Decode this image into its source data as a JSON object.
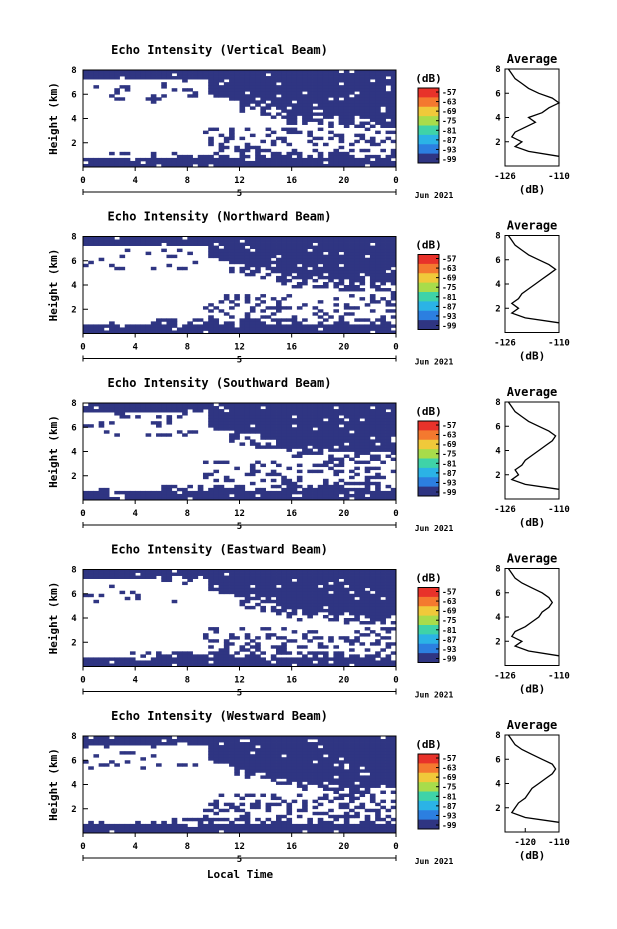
{
  "figure": {
    "xlabel": "Local Time",
    "date_label": "Jun 2021",
    "ylabel": "Height (km)",
    "colorbar_unit": "(dB)",
    "avg_title": "Average",
    "avg_xlabel": "(dB)",
    "colors": {
      "fill": "#2f3582",
      "background": "#ffffff",
      "trace": "#000000"
    }
  },
  "chart_data": [
    {
      "type": "heatmap",
      "title": "Echo Intensity (Vertical Beam)",
      "x_ticks": [
        "0",
        "4",
        "8",
        "12",
        "16",
        "20",
        "0"
      ],
      "x_day_label": "5",
      "xlim": [
        0,
        24
      ],
      "ylim": [
        0,
        8
      ],
      "y_ticks": [
        "2",
        "4",
        "6",
        "8"
      ],
      "colorbar_ticks": [
        "-57",
        "-63",
        "-69",
        "-75",
        "-81",
        "-87",
        "-93",
        "-99"
      ],
      "colorbar_colors": [
        "#e8322a",
        "#f4792f",
        "#f0c93a",
        "#a8dc4b",
        "#3fd3a8",
        "#2bb3e6",
        "#2c7fe0",
        "#2f3582"
      ],
      "profile": {
        "title": "Average",
        "xlim": [
          -126,
          -110
        ],
        "x_ticks": [
          "-126",
          "-110"
        ],
        "ylim": [
          0,
          8
        ],
        "y_ticks": [
          "2",
          "4",
          "6",
          "8"
        ],
        "heights": [
          0.8,
          1.2,
          1.6,
          2.0,
          2.4,
          2.8,
          3.2,
          3.6,
          4.0,
          4.4,
          4.8,
          5.2,
          5.6,
          6.0,
          6.4,
          6.8,
          7.2,
          7.6,
          8.0
        ],
        "values": [
          -110,
          -119,
          -123,
          -121,
          -124,
          -123,
          -120,
          -117,
          -119,
          -115,
          -113,
          -110,
          -112,
          -116,
          -119,
          -121,
          -123,
          -124,
          -125
        ]
      }
    },
    {
      "type": "heatmap",
      "title": "Echo Intensity (Northward Beam)",
      "x_ticks": [
        "0",
        "4",
        "8",
        "12",
        "16",
        "20",
        "0"
      ],
      "x_day_label": "5",
      "xlim": [
        0,
        24
      ],
      "ylim": [
        0,
        8
      ],
      "y_ticks": [
        "2",
        "4",
        "6",
        "8"
      ],
      "colorbar_ticks": [
        "-57",
        "-63",
        "-69",
        "-75",
        "-81",
        "-87",
        "-93",
        "-99"
      ],
      "colorbar_colors": [
        "#e8322a",
        "#f4792f",
        "#f0c93a",
        "#a8dc4b",
        "#3fd3a8",
        "#2bb3e6",
        "#2c7fe0",
        "#2f3582"
      ],
      "profile": {
        "title": "Average",
        "xlim": [
          -126,
          -110
        ],
        "x_ticks": [
          "-126",
          "-110"
        ],
        "ylim": [
          0,
          8
        ],
        "y_ticks": [
          "2",
          "4",
          "6",
          "8"
        ],
        "heights": [
          0.8,
          1.2,
          1.6,
          2.0,
          2.4,
          2.8,
          3.2,
          3.6,
          4.0,
          4.4,
          4.8,
          5.2,
          5.6,
          6.0,
          6.4,
          6.8,
          7.2,
          7.6,
          8.0
        ],
        "values": [
          -110,
          -120,
          -124,
          -122,
          -124,
          -122,
          -121,
          -119,
          -117,
          -115,
          -113,
          -111,
          -113,
          -116,
          -119,
          -121,
          -123,
          -124,
          -125
        ]
      }
    },
    {
      "type": "heatmap",
      "title": "Echo Intensity (Southward Beam)",
      "x_ticks": [
        "0",
        "4",
        "8",
        "12",
        "16",
        "20",
        "0"
      ],
      "x_day_label": "5",
      "xlim": [
        0,
        24
      ],
      "ylim": [
        0,
        8
      ],
      "y_ticks": [
        "2",
        "4",
        "6",
        "8"
      ],
      "colorbar_ticks": [
        "-57",
        "-63",
        "-69",
        "-75",
        "-81",
        "-87",
        "-93",
        "-99"
      ],
      "colorbar_colors": [
        "#e8322a",
        "#f4792f",
        "#f0c93a",
        "#a8dc4b",
        "#3fd3a8",
        "#2bb3e6",
        "#2c7fe0",
        "#2f3582"
      ],
      "profile": {
        "title": "Average",
        "xlim": [
          -126,
          -110
        ],
        "x_ticks": [
          "-126",
          "-110"
        ],
        "ylim": [
          0,
          8
        ],
        "y_ticks": [
          "2",
          "4",
          "6",
          "8"
        ],
        "heights": [
          0.8,
          1.2,
          1.6,
          2.0,
          2.4,
          2.8,
          3.2,
          3.6,
          4.0,
          4.4,
          4.8,
          5.2,
          5.6,
          6.0,
          6.4,
          6.8,
          7.2,
          7.6,
          8.0
        ],
        "values": [
          -110,
          -120,
          -124,
          -122,
          -123,
          -121,
          -120,
          -118,
          -116,
          -114,
          -112,
          -111,
          -113,
          -116,
          -119,
          -121,
          -123,
          -124,
          -125
        ]
      }
    },
    {
      "type": "heatmap",
      "title": "Echo Intensity (Eastward Beam)",
      "x_ticks": [
        "0",
        "4",
        "8",
        "12",
        "16",
        "20",
        "0"
      ],
      "x_day_label": "5",
      "xlim": [
        0,
        24
      ],
      "ylim": [
        0,
        8
      ],
      "y_ticks": [
        "2",
        "4",
        "6",
        "8"
      ],
      "colorbar_ticks": [
        "-57",
        "-63",
        "-69",
        "-75",
        "-81",
        "-87",
        "-93",
        "-99"
      ],
      "colorbar_colors": [
        "#e8322a",
        "#f4792f",
        "#f0c93a",
        "#a8dc4b",
        "#3fd3a8",
        "#2bb3e6",
        "#2c7fe0",
        "#2f3582"
      ],
      "profile": {
        "title": "Average",
        "xlim": [
          -126,
          -110
        ],
        "x_ticks": [
          "-126",
          "-110"
        ],
        "ylim": [
          0,
          8
        ],
        "y_ticks": [
          "2",
          "4",
          "6",
          "8"
        ],
        "heights": [
          0.8,
          1.2,
          1.6,
          2.0,
          2.4,
          2.8,
          3.2,
          3.6,
          4.0,
          4.4,
          4.8,
          5.2,
          5.6,
          6.0,
          6.4,
          6.8,
          7.2,
          7.6,
          8.0
        ],
        "values": [
          -110,
          -119,
          -123,
          -121,
          -124,
          -123,
          -120,
          -118,
          -116,
          -115,
          -113,
          -112,
          -113,
          -115,
          -118,
          -121,
          -123,
          -124,
          -125
        ]
      }
    },
    {
      "type": "heatmap",
      "title": "Echo Intensity (Westward Beam)",
      "x_ticks": [
        "0",
        "4",
        "8",
        "12",
        "16",
        "20",
        "0"
      ],
      "x_day_label": "5",
      "xlim": [
        0,
        24
      ],
      "ylim": [
        0,
        8
      ],
      "y_ticks": [
        "2",
        "4",
        "6",
        "8"
      ],
      "colorbar_ticks": [
        "-57",
        "-63",
        "-69",
        "-75",
        "-81",
        "-87",
        "-93",
        "-99"
      ],
      "colorbar_colors": [
        "#e8322a",
        "#f4792f",
        "#f0c93a",
        "#a8dc4b",
        "#3fd3a8",
        "#2bb3e6",
        "#2c7fe0",
        "#2f3582"
      ],
      "profile": {
        "title": "Average",
        "xlim": [
          -126,
          -110
        ],
        "x_ticks": [
          "-120",
          "-110"
        ],
        "ylim": [
          0,
          8
        ],
        "y_ticks": [
          "2",
          "4",
          "6",
          "8"
        ],
        "heights": [
          0.8,
          1.2,
          1.6,
          2.0,
          2.4,
          2.8,
          3.2,
          3.6,
          4.0,
          4.4,
          4.8,
          5.2,
          5.6,
          6.0,
          6.4,
          6.8,
          7.2,
          7.6,
          8.0
        ],
        "values": [
          -110,
          -120,
          -124,
          -123,
          -122,
          -120,
          -119,
          -118,
          -116,
          -114,
          -112,
          -111,
          -112,
          -115,
          -118,
          -121,
          -123,
          -124,
          -125
        ]
      }
    }
  ]
}
